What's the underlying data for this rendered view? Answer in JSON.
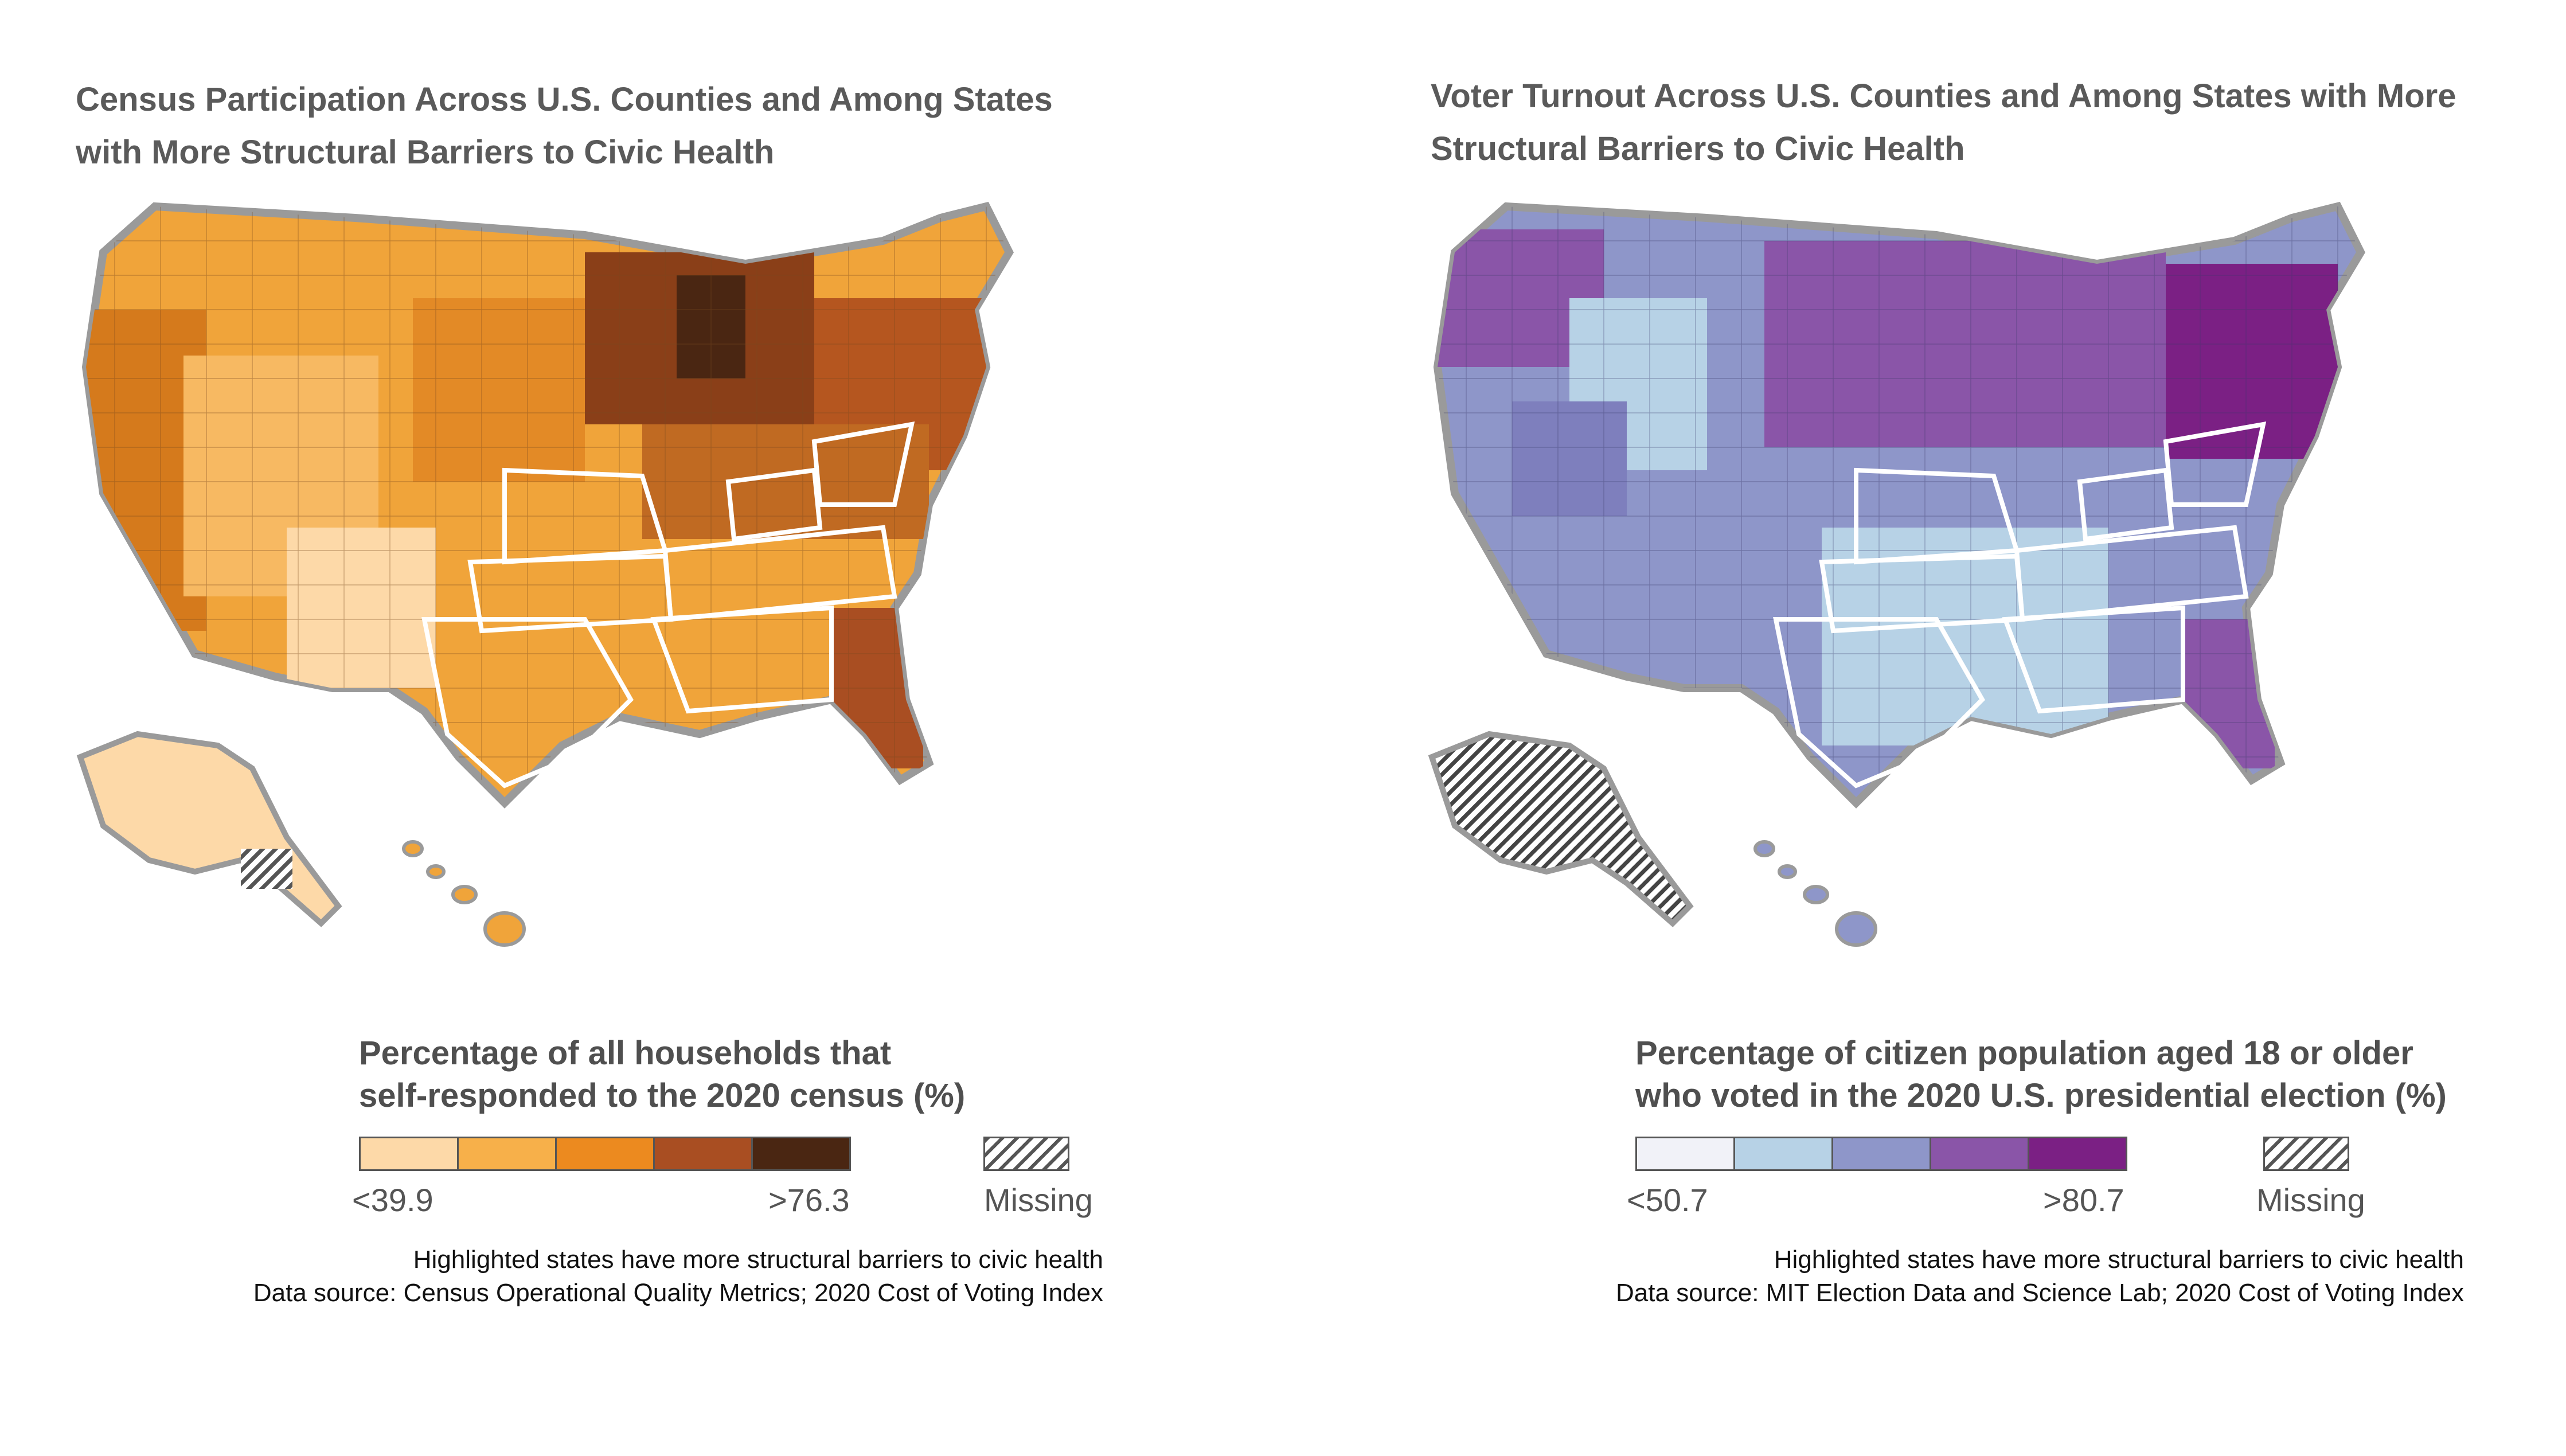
{
  "panels": [
    {
      "title_line1": "Census Participation Across U.S. Counties and Among States",
      "title_line2": "with More Structural Barriers to Civic Health",
      "legend_title_line1": "Percentage of all households that",
      "legend_title_line2": "self-responded to the 2020 census (%)",
      "legend_low": "<39.9",
      "legend_high": ">76.3",
      "legend_missing": "Missing",
      "legend_colors": [
        "#fdd9a8",
        "#f7b04a",
        "#ec8a1f",
        "#a94e22",
        "#4a2612"
      ],
      "note_line1": "Highlighted states have more structural barriers to civic health",
      "note_line2": "Data source: Census Operational Quality Metrics; 2020 Cost of Voting Index"
    },
    {
      "title_line1": "Voter Turnout Across U.S. Counties and Among States with More",
      "title_line2": "Structural Barriers to Civic Health",
      "legend_title_line1": "Percentage of citizen population aged 18 or older",
      "legend_title_line2": "who voted in the 2020 U.S. presidential election (%)",
      "legend_low": "<50.7",
      "legend_high": ">80.7",
      "legend_missing": "Missing",
      "legend_colors": [
        "#f1f2f8",
        "#b7d2e6",
        "#8e96c9",
        "#8a55a8",
        "#7b2084"
      ],
      "note_line1": "Highlighted states have more structural barriers to civic health",
      "note_line2": "Data source: MIT Election Data and Science Lab; 2020 Cost of Voting Index"
    }
  ]
}
